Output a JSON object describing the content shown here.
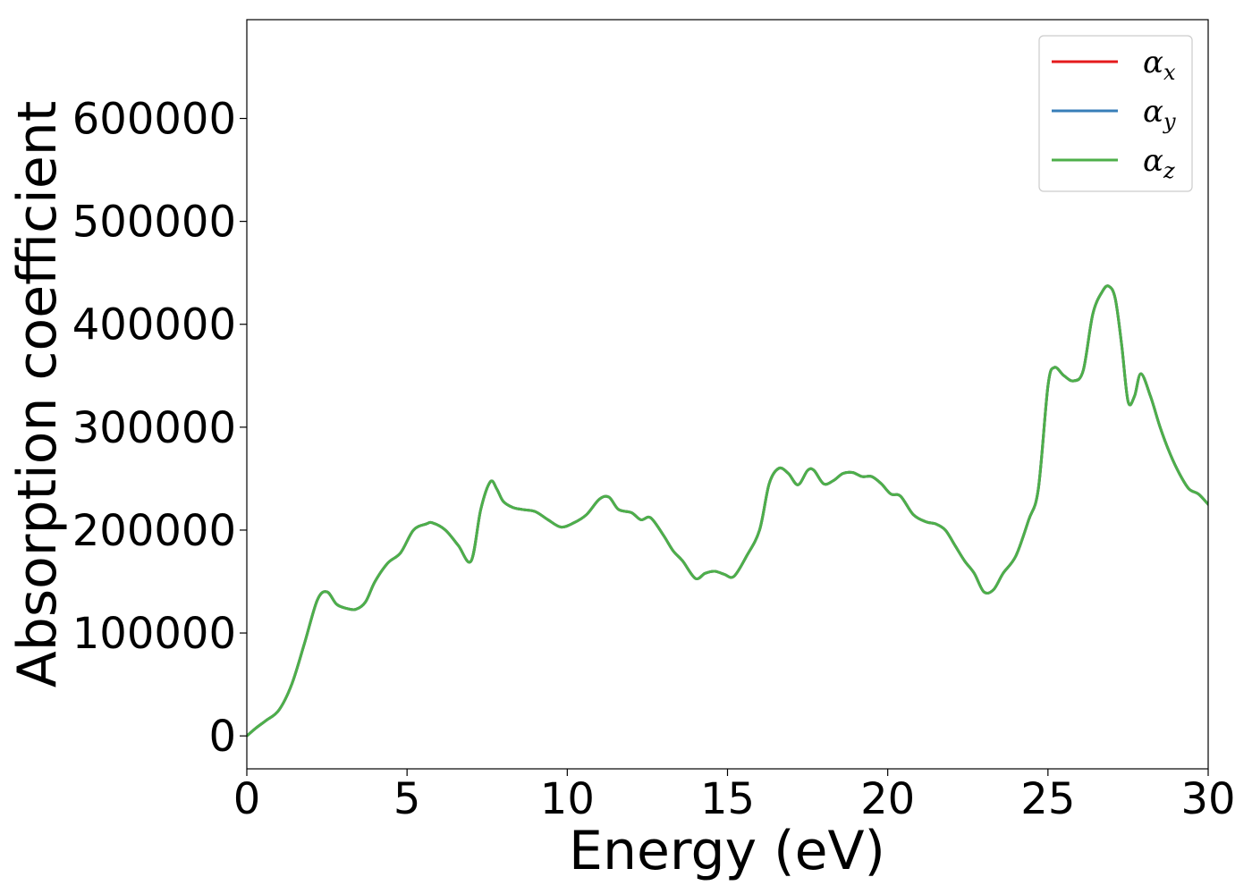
{
  "chart_data": {
    "type": "line",
    "title": "",
    "xlabel": "Energy (eV)",
    "ylabel": "Absorption coefficient",
    "xlim": [
      0,
      30
    ],
    "ylim": [
      -32000,
      696000
    ],
    "xticks": [
      0,
      5,
      10,
      15,
      20,
      25,
      30
    ],
    "xtick_labels": [
      "0",
      "5",
      "10",
      "15",
      "20",
      "25",
      "30"
    ],
    "yticks": [
      0,
      100000,
      200000,
      300000,
      400000,
      500000,
      600000
    ],
    "ytick_labels": [
      "0",
      "100000",
      "200000",
      "300000",
      "400000",
      "500000",
      "600000"
    ],
    "grid": false,
    "legend_position": "upper-right",
    "series": [
      {
        "name": "α",
        "subscript": "x",
        "color": "#e41a1c",
        "x": [
          0,
          0.3,
          0.6,
          1.0,
          1.4,
          1.8,
          2.2,
          2.5,
          2.8,
          3.1,
          3.4,
          3.7,
          4.0,
          4.4,
          4.8,
          5.2,
          5.6,
          5.8,
          6.2,
          6.6,
          7.0,
          7.3,
          7.6,
          7.8,
          8.0,
          8.3,
          8.6,
          9.0,
          9.4,
          9.8,
          10.2,
          10.6,
          11.0,
          11.3,
          11.6,
          12.0,
          12.3,
          12.6,
          13.0,
          13.3,
          13.6,
          14.0,
          14.3,
          14.6,
          14.9,
          15.2,
          15.6,
          16.0,
          16.3,
          16.6,
          16.9,
          17.2,
          17.5,
          17.7,
          18.0,
          18.3,
          18.6,
          18.9,
          19.2,
          19.5,
          19.8,
          20.1,
          20.4,
          20.8,
          21.2,
          21.5,
          21.8,
          22.1,
          22.4,
          22.7,
          23.0,
          23.3,
          23.6,
          24.0,
          24.4,
          24.7,
          25.0,
          25.2,
          25.5,
          25.8,
          26.1,
          26.4,
          26.7,
          26.9,
          27.1,
          27.3,
          27.5,
          27.7,
          27.9,
          28.2,
          28.5,
          28.8,
          29.1,
          29.4,
          29.7,
          30.0
        ],
        "values": [
          0,
          8000,
          15000,
          25000,
          50000,
          90000,
          132000,
          140000,
          128000,
          124000,
          123000,
          130000,
          150000,
          168000,
          178000,
          200000,
          206000,
          207000,
          200000,
          185000,
          170000,
          220000,
          247000,
          240000,
          228000,
          222000,
          220000,
          218000,
          210000,
          203000,
          207000,
          215000,
          230000,
          232000,
          220000,
          217000,
          210000,
          212000,
          195000,
          180000,
          170000,
          153000,
          158000,
          160000,
          157000,
          155000,
          175000,
          200000,
          245000,
          260000,
          255000,
          244000,
          258000,
          258000,
          245000,
          248000,
          255000,
          256000,
          252000,
          252000,
          245000,
          235000,
          233000,
          215000,
          208000,
          206000,
          200000,
          185000,
          170000,
          158000,
          140000,
          142000,
          158000,
          175000,
          210000,
          240000,
          340000,
          358000,
          350000,
          345000,
          355000,
          410000,
          432000,
          437000,
          425000,
          380000,
          325000,
          330000,
          352000,
          330000,
          300000,
          275000,
          255000,
          240000,
          235000,
          225000
        ]
      },
      {
        "name": "α",
        "subscript": "y",
        "color": "#377eb8",
        "x": [
          0,
          0.3,
          0.6,
          1.0,
          1.4,
          1.8,
          2.2,
          2.5,
          2.8,
          3.1,
          3.4,
          3.7,
          4.0,
          4.4,
          4.8,
          5.2,
          5.6,
          5.8,
          6.2,
          6.6,
          7.0,
          7.3,
          7.6,
          7.8,
          8.0,
          8.3,
          8.6,
          9.0,
          9.4,
          9.8,
          10.2,
          10.6,
          11.0,
          11.3,
          11.6,
          12.0,
          12.3,
          12.6,
          13.0,
          13.3,
          13.6,
          14.0,
          14.3,
          14.6,
          14.9,
          15.2,
          15.6,
          16.0,
          16.3,
          16.6,
          16.9,
          17.2,
          17.5,
          17.7,
          18.0,
          18.3,
          18.6,
          18.9,
          19.2,
          19.5,
          19.8,
          20.1,
          20.4,
          20.8,
          21.2,
          21.5,
          21.8,
          22.1,
          22.4,
          22.7,
          23.0,
          23.3,
          23.6,
          24.0,
          24.4,
          24.7,
          25.0,
          25.2,
          25.5,
          25.8,
          26.1,
          26.4,
          26.7,
          26.9,
          27.1,
          27.3,
          27.5,
          27.7,
          27.9,
          28.2,
          28.5,
          28.8,
          29.1,
          29.4,
          29.7,
          30.0
        ],
        "values": [
          0,
          8000,
          15000,
          25000,
          50000,
          90000,
          132000,
          140000,
          128000,
          124000,
          123000,
          130000,
          150000,
          168000,
          178000,
          200000,
          206000,
          207000,
          200000,
          185000,
          170000,
          220000,
          247000,
          240000,
          228000,
          222000,
          220000,
          218000,
          210000,
          203000,
          207000,
          215000,
          230000,
          232000,
          220000,
          217000,
          210000,
          212000,
          195000,
          180000,
          170000,
          153000,
          158000,
          160000,
          157000,
          155000,
          175000,
          200000,
          245000,
          260000,
          255000,
          244000,
          258000,
          258000,
          245000,
          248000,
          255000,
          256000,
          252000,
          252000,
          245000,
          235000,
          233000,
          215000,
          208000,
          206000,
          200000,
          185000,
          170000,
          158000,
          140000,
          142000,
          158000,
          175000,
          210000,
          240000,
          340000,
          358000,
          350000,
          345000,
          355000,
          410000,
          432000,
          437000,
          425000,
          380000,
          325000,
          330000,
          352000,
          330000,
          300000,
          275000,
          255000,
          240000,
          235000,
          225000
        ]
      },
      {
        "name": "α",
        "subscript": "z",
        "color": "#4daf4a",
        "x": [
          0,
          0.3,
          0.6,
          1.0,
          1.4,
          1.8,
          2.2,
          2.5,
          2.8,
          3.1,
          3.4,
          3.7,
          4.0,
          4.4,
          4.8,
          5.2,
          5.6,
          5.8,
          6.2,
          6.6,
          7.0,
          7.3,
          7.6,
          7.8,
          8.0,
          8.3,
          8.6,
          9.0,
          9.4,
          9.8,
          10.2,
          10.6,
          11.0,
          11.3,
          11.6,
          12.0,
          12.3,
          12.6,
          13.0,
          13.3,
          13.6,
          14.0,
          14.3,
          14.6,
          14.9,
          15.2,
          15.6,
          16.0,
          16.3,
          16.6,
          16.9,
          17.2,
          17.5,
          17.7,
          18.0,
          18.3,
          18.6,
          18.9,
          19.2,
          19.5,
          19.8,
          20.1,
          20.4,
          20.8,
          21.2,
          21.5,
          21.8,
          22.1,
          22.4,
          22.7,
          23.0,
          23.3,
          23.6,
          24.0,
          24.4,
          24.7,
          25.0,
          25.2,
          25.5,
          25.8,
          26.1,
          26.4,
          26.7,
          26.9,
          27.1,
          27.3,
          27.5,
          27.7,
          27.9,
          28.2,
          28.5,
          28.8,
          29.1,
          29.4,
          29.7,
          30.0
        ],
        "values": [
          0,
          8000,
          15000,
          25000,
          50000,
          90000,
          132000,
          140000,
          128000,
          124000,
          123000,
          130000,
          150000,
          168000,
          178000,
          200000,
          206000,
          207000,
          200000,
          185000,
          170000,
          220000,
          247000,
          240000,
          228000,
          222000,
          220000,
          218000,
          210000,
          203000,
          207000,
          215000,
          230000,
          232000,
          220000,
          217000,
          210000,
          212000,
          195000,
          180000,
          170000,
          153000,
          158000,
          160000,
          157000,
          155000,
          175000,
          200000,
          245000,
          260000,
          255000,
          244000,
          258000,
          258000,
          245000,
          248000,
          255000,
          256000,
          252000,
          252000,
          245000,
          235000,
          233000,
          215000,
          208000,
          206000,
          200000,
          185000,
          170000,
          158000,
          140000,
          142000,
          158000,
          175000,
          210000,
          240000,
          340000,
          358000,
          350000,
          345000,
          355000,
          410000,
          432000,
          437000,
          425000,
          380000,
          325000,
          330000,
          352000,
          330000,
          300000,
          275000,
          255000,
          240000,
          235000,
          225000
        ]
      }
    ]
  }
}
